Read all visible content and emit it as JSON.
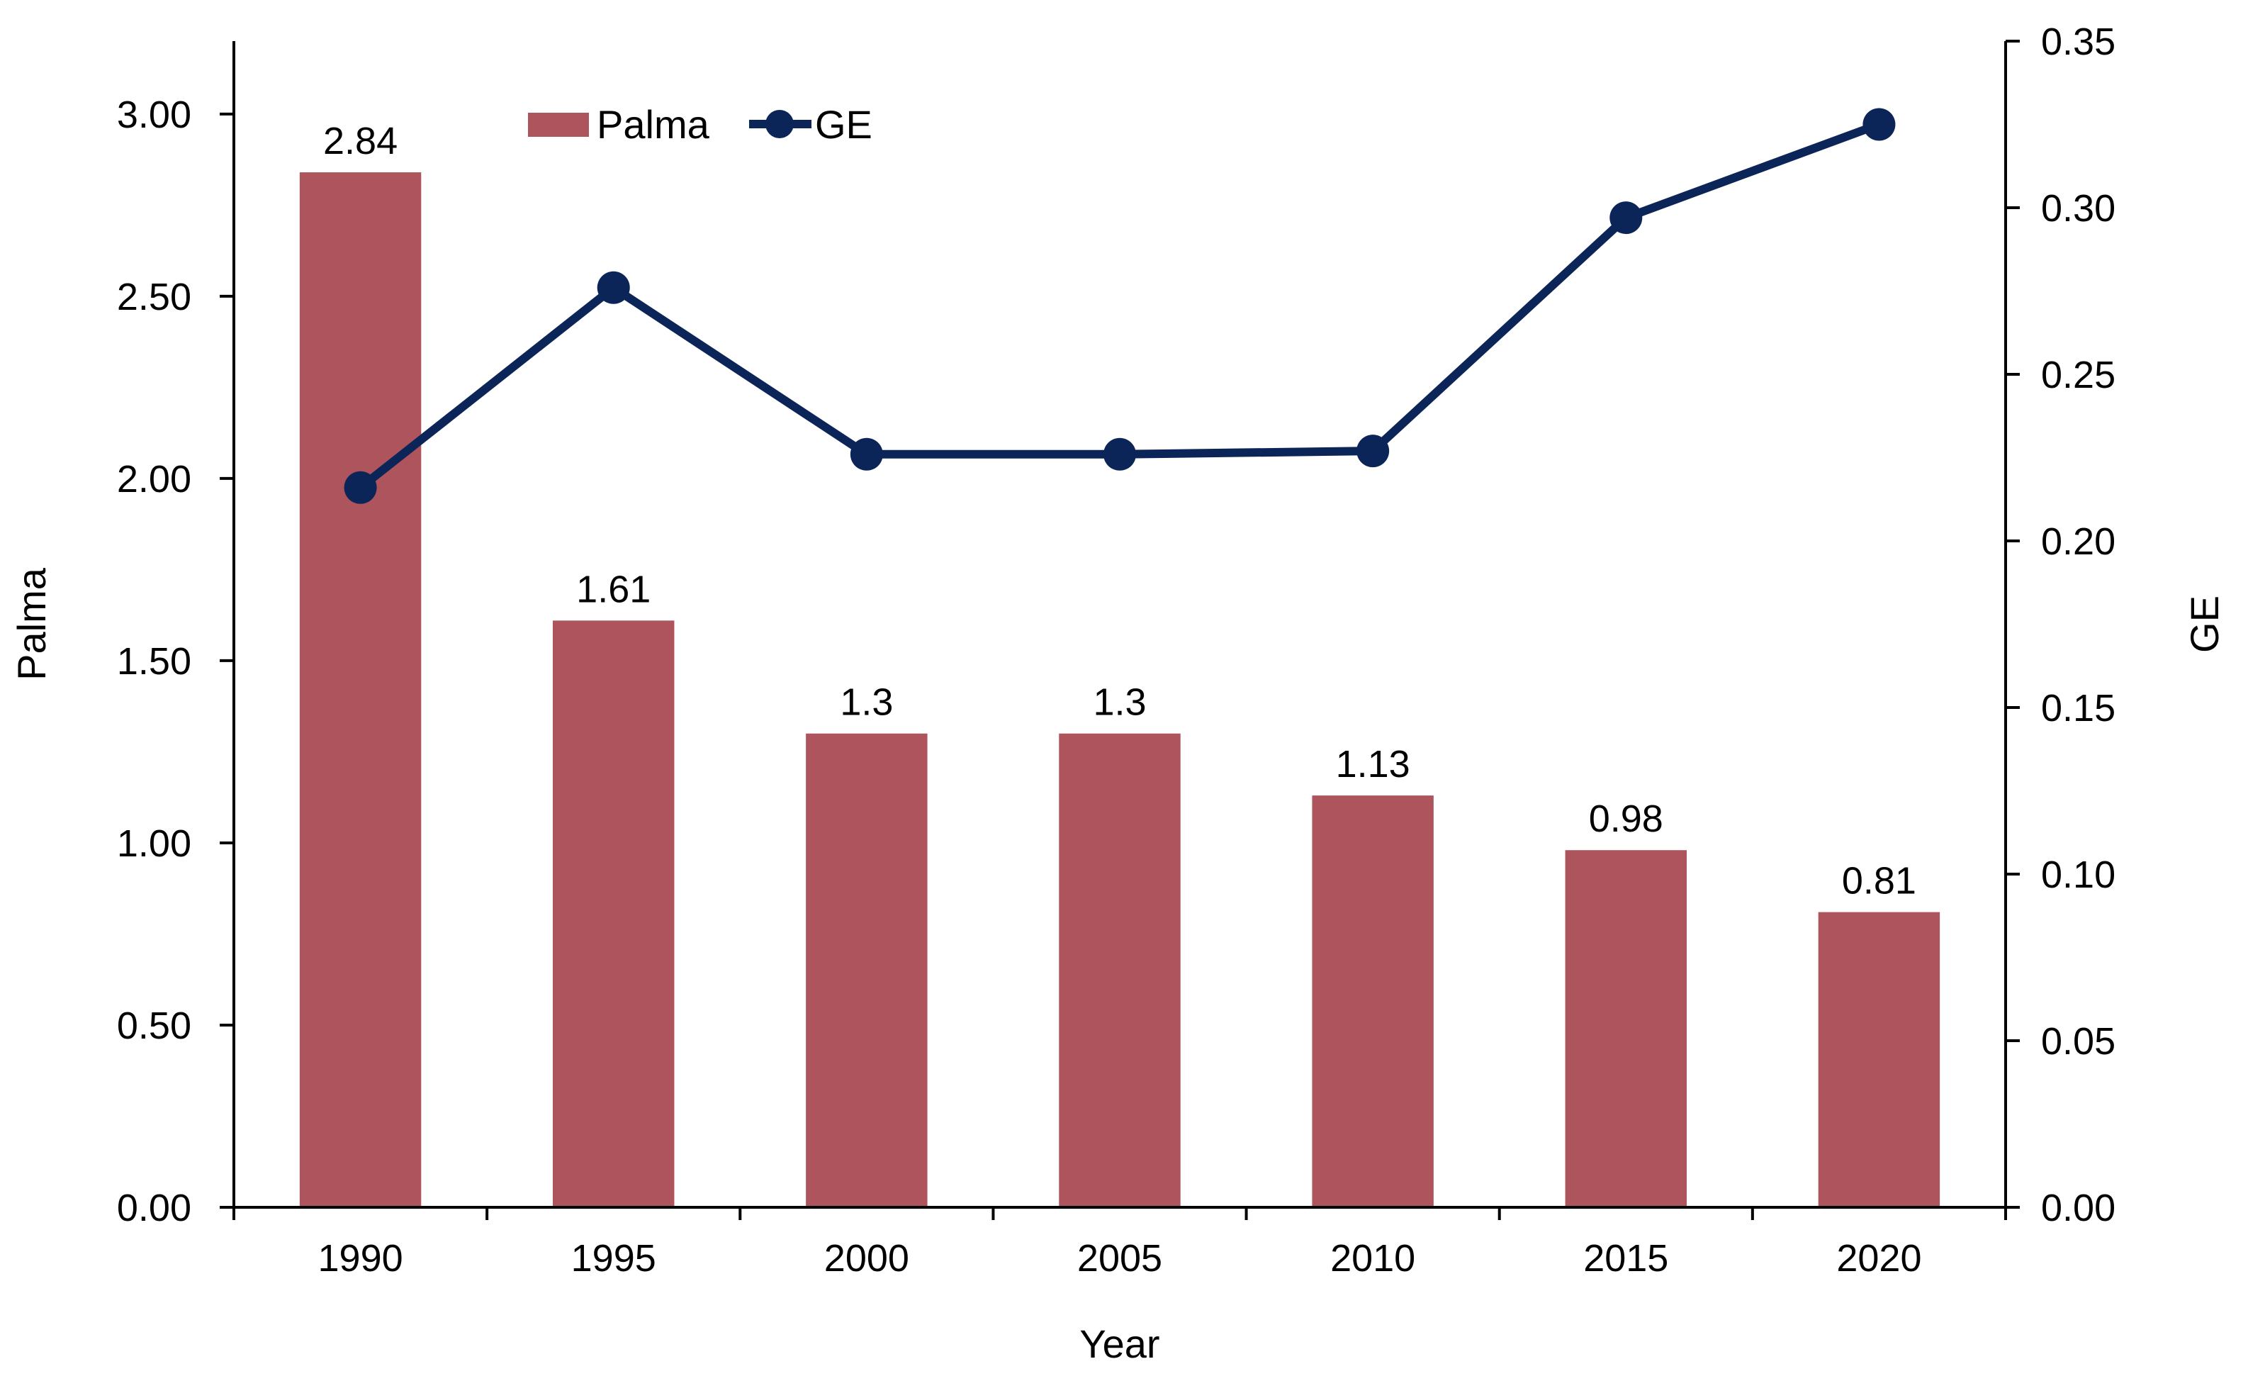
{
  "chart_data": {
    "type": "bar",
    "categories": [
      "1990",
      "1995",
      "2000",
      "2005",
      "2010",
      "2015",
      "2020"
    ],
    "series": [
      {
        "name": "Palma",
        "type": "bar",
        "axis": "left",
        "values": [
          2.84,
          1.61,
          1.3,
          1.3,
          1.13,
          0.98,
          0.81
        ],
        "data_labels": [
          "2.84",
          "1.61",
          "1.3",
          "1.3",
          "1.13",
          "0.98",
          "0.81"
        ],
        "color": "#AD545D"
      },
      {
        "name": "GE",
        "type": "line",
        "axis": "right",
        "values": [
          0.216,
          0.276,
          0.226,
          0.226,
          0.227,
          0.297,
          0.325
        ],
        "color": "#0B2559"
      }
    ],
    "xlabel": "Year",
    "ylabel": "Palma",
    "y2label": "GE",
    "ylim": [
      0,
      3.2
    ],
    "y2lim": [
      0,
      0.35
    ],
    "yticks": [
      "0.00",
      "0.50",
      "1.00",
      "1.50",
      "2.00",
      "2.50",
      "3.00"
    ],
    "y2ticks": [
      "0.00",
      "0.05",
      "0.10",
      "0.15",
      "0.20",
      "0.25",
      "0.30",
      "0.35"
    ],
    "grid": false,
    "legend": "top-center"
  }
}
